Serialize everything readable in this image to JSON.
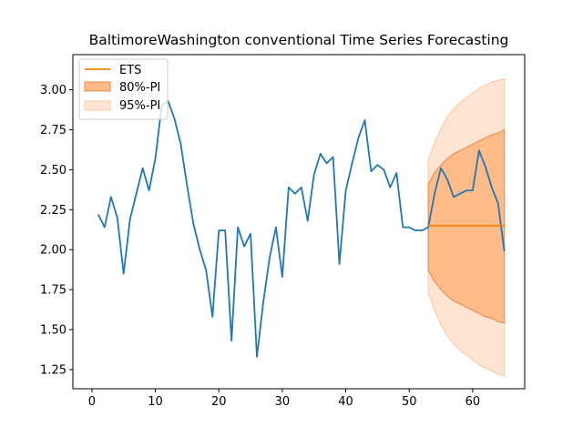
{
  "chart_data": {
    "type": "line",
    "title": "BaltimoreWashington conventional Time Series Forecasting",
    "xlabel": "",
    "ylabel": "",
    "xlim": [
      -3,
      68.2
    ],
    "ylim": [
      1.13,
      3.22
    ],
    "xticks": [
      0,
      10,
      20,
      30,
      40,
      50,
      60
    ],
    "yticks": [
      1.25,
      1.5,
      1.75,
      2.0,
      2.25,
      2.5,
      2.75,
      3.0
    ],
    "ytick_labels": [
      "1.25",
      "1.50",
      "1.75",
      "2.00",
      "2.25",
      "2.50",
      "2.75",
      "3.00"
    ],
    "grid": false,
    "legend": {
      "placement": "top-left",
      "entries": [
        "ETS",
        "80%-PI",
        "95%-PI"
      ]
    },
    "colors": {
      "series": "#1f77b4",
      "forecast": "#ff7f0e",
      "pi80_fill": "#ffbb88",
      "pi80_edge": "#e8884a",
      "pi95_fill": "#ffe4d2",
      "pi95_edge": "#f8c9a8"
    },
    "series": [
      {
        "x": [
          1,
          2,
          3,
          4,
          5,
          6,
          7,
          8,
          9,
          10,
          11,
          12,
          13,
          14,
          15,
          16,
          17,
          18,
          19,
          20,
          21,
          22,
          23,
          24,
          25,
          26,
          27,
          28,
          29,
          30,
          31,
          32,
          33,
          34,
          35,
          36,
          37,
          38,
          39,
          40,
          41,
          42,
          43,
          44,
          45,
          46,
          47,
          48,
          49,
          50,
          51,
          52,
          53,
          54,
          55,
          56,
          57,
          58,
          59,
          60,
          61,
          62,
          63,
          64,
          65
        ],
        "values": [
          2.22,
          2.14,
          2.33,
          2.2,
          1.85,
          2.19,
          2.35,
          2.51,
          2.37,
          2.57,
          2.9,
          2.93,
          2.82,
          2.66,
          2.4,
          2.16,
          2.0,
          1.87,
          1.58,
          2.12,
          2.12,
          1.43,
          2.14,
          2.02,
          2.1,
          1.33,
          1.67,
          1.95,
          2.14,
          1.83,
          2.39,
          2.35,
          2.39,
          2.18,
          2.47,
          2.6,
          2.54,
          2.58,
          1.91,
          2.37,
          2.54,
          2.7,
          2.81,
          2.49,
          2.53,
          2.5,
          2.39,
          2.48,
          2.14,
          2.14,
          2.12,
          2.12,
          2.14,
          2.35,
          2.51,
          2.44,
          2.33,
          2.35,
          2.37,
          2.37,
          2.62,
          2.52,
          2.39,
          2.29,
          1.99
        ]
      },
      {
        "name": "ETS",
        "x": [
          53,
          65
        ],
        "values": [
          2.15,
          2.15
        ]
      }
    ],
    "intervals": [
      {
        "name": "80%-PI",
        "x": [
          53,
          54,
          55,
          56,
          57,
          58,
          59,
          60,
          61,
          62,
          63,
          64,
          65
        ],
        "lower": [
          1.87,
          1.8,
          1.75,
          1.71,
          1.68,
          1.66,
          1.64,
          1.62,
          1.6,
          1.58,
          1.57,
          1.55,
          1.54
        ],
        "upper": [
          2.41,
          2.48,
          2.53,
          2.57,
          2.6,
          2.62,
          2.64,
          2.66,
          2.68,
          2.7,
          2.72,
          2.73,
          2.75
        ]
      },
      {
        "name": "95%-PI",
        "x": [
          53,
          54,
          55,
          56,
          57,
          58,
          59,
          60,
          61,
          62,
          63,
          64,
          65
        ],
        "lower": [
          1.73,
          1.62,
          1.53,
          1.46,
          1.41,
          1.37,
          1.34,
          1.31,
          1.28,
          1.26,
          1.24,
          1.22,
          1.21
        ],
        "upper": [
          2.56,
          2.67,
          2.76,
          2.83,
          2.88,
          2.92,
          2.95,
          2.98,
          3.01,
          3.03,
          3.05,
          3.06,
          3.07
        ]
      }
    ]
  }
}
